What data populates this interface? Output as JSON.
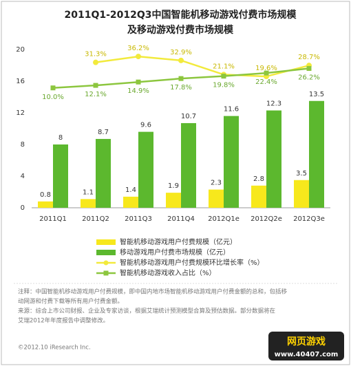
{
  "chart_data": {
    "type": "bar",
    "title_lines": [
      "2011Q1-2012Q3中国智能机移动游戏付费市场规模",
      "及移动游戏付费市场规模"
    ],
    "categories": [
      "2011Q1",
      "2011Q2",
      "2011Q3",
      "2011Q4",
      "2012Q1e",
      "2012Q2e",
      "2012Q3e"
    ],
    "series": [
      {
        "name": "智能机移动游戏用户付费规模（亿元）",
        "type": "bar",
        "color": "#f7e81c",
        "values": [
          0.8,
          1.1,
          1.4,
          1.9,
          2.3,
          2.8,
          3.5
        ]
      },
      {
        "name": "移动游戏用户付费市场规模（亿元）",
        "type": "bar",
        "color": "#5cb82e",
        "values": [
          8,
          8.7,
          9.6,
          10.7,
          11.6,
          12.3,
          13.5
        ]
      },
      {
        "name": "智能机移动游戏用户付费规模环比增长率（%）",
        "type": "line",
        "axis": "y2",
        "color": "#f2ea3c",
        "values": [
          null,
          31.3,
          36.2,
          32.9,
          21.1,
          19.6,
          28.7
        ],
        "value_labels": [
          null,
          "31.3%",
          "36.2%",
          "32.9%",
          "21.1%",
          "19.6%",
          "28.7%"
        ]
      },
      {
        "name": "智能机移动游戏收入占比（%）",
        "type": "line",
        "axis": "y2",
        "color": "#8cc63e",
        "values": [
          10.0,
          12.1,
          14.9,
          17.8,
          19.8,
          22.4,
          26.2
        ],
        "value_labels": [
          "10.0%",
          "12.1%",
          "14.9%",
          "17.8%",
          "19.8%",
          "22.4%",
          "26.2%"
        ]
      }
    ],
    "ylim": [
      0,
      20
    ],
    "yticks": [
      0,
      4,
      8,
      12,
      16,
      20
    ],
    "y2lim": [
      -90,
      42
    ],
    "notes": [
      "注释：中国智能机移动游戏用户付费规模，即中国内地市场智能机移动游戏用户付费金额的总和，包括移",
      "动网游和付费下载等所有用户付费金额。",
      "来源：综合上市公司财报、企业及专家访谈，根据艾瑞统计预测模型合算及预估数据。部分数据将在",
      "艾瑞2012年年度报告中调整修改。"
    ],
    "copyright": "©2012.10 iResearch Inc.",
    "watermark": [
      "网页游戏",
      "www.40407.com"
    ]
  }
}
